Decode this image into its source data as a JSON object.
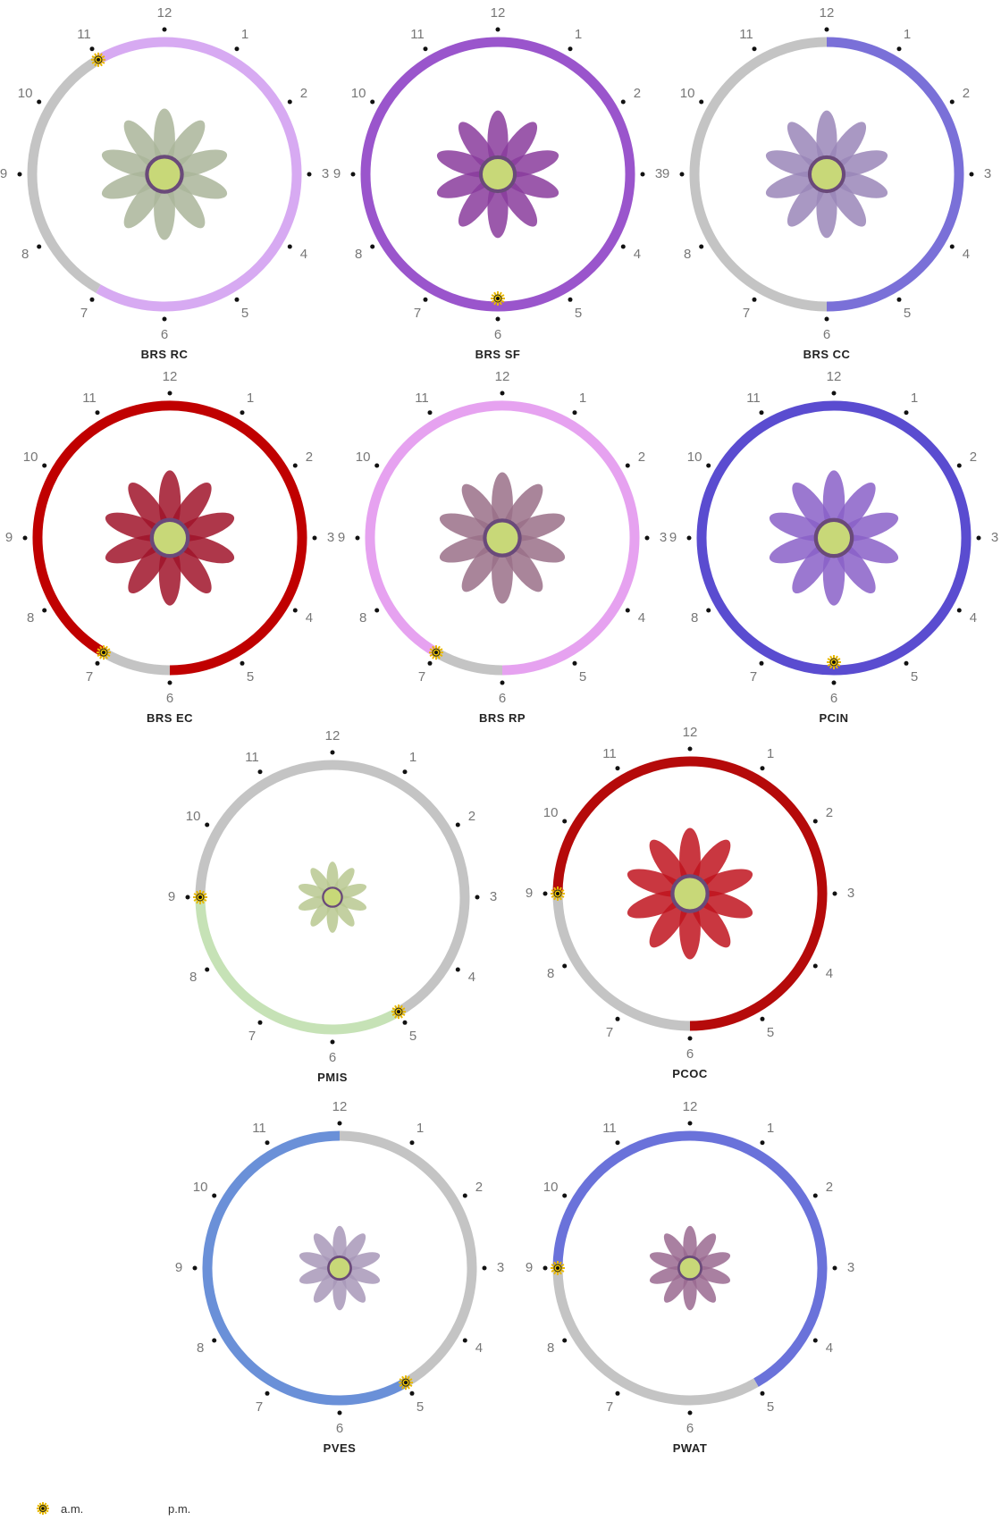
{
  "hours": [
    12,
    1,
    2,
    3,
    4,
    5,
    6,
    7,
    8,
    9,
    10,
    11
  ],
  "panels": [
    {
      "label": "BRS RC",
      "color": "#d7aaf2",
      "flower_color": "#aab59a",
      "open": {
        "hour": 11,
        "icon": "sun"
      },
      "close": {
        "hour": 7,
        "icon": "moon"
      }
    },
    {
      "label": "BRS SF",
      "color": "#9a55cc",
      "flower_color": "#8a3c9c",
      "open": {
        "hour": 6,
        "icon": "sun"
      },
      "close": {
        "hour": 6,
        "icon": "moon"
      }
    },
    {
      "label": "BRS CC",
      "color": "#7a70d8",
      "flower_color": "#9a86b8",
      "open": {
        "hour": 12,
        "icon": "moon"
      },
      "close": {
        "hour": 6,
        "icon": "moon"
      }
    },
    {
      "label": "BRS EC",
      "color": "#c00000",
      "flower_color": "#a0142a",
      "open": {
        "hour": 7,
        "icon": "sun"
      },
      "close": {
        "hour": 6,
        "icon": "moon"
      }
    },
    {
      "label": "BRS RP",
      "color": "#e6a2f0",
      "flower_color": "#9a7088",
      "open": {
        "hour": 7,
        "icon": "sun"
      },
      "close": {
        "hour": 6,
        "icon": "moon"
      }
    },
    {
      "label": "PCIN",
      "color": "#5a4cd0",
      "flower_color": "#8a60c8",
      "open": {
        "hour": 6,
        "icon": "sun"
      },
      "close": {
        "hour": 6,
        "icon": "moon"
      }
    },
    {
      "label": "PMIS",
      "color": "#c6e2b6",
      "flower_color": "#b8c890",
      "open": {
        "hour": 5,
        "icon": "sun"
      },
      "close": {
        "hour": 9,
        "icon": "sun"
      }
    },
    {
      "label": "PCOC",
      "color": "#b50a0a",
      "flower_color": "#c0141e",
      "open": {
        "hour": 9,
        "icon": "sun"
      },
      "close": {
        "hour": 6,
        "icon": "moon"
      }
    },
    {
      "label": "PVES",
      "color": "#6a90d8",
      "flower_color": "#a898b8",
      "open": {
        "hour": 5,
        "icon": "sun"
      },
      "close": {
        "hour": 12,
        "icon": "moon"
      }
    },
    {
      "label": "PWAT",
      "color": "#6a72da",
      "flower_color": "#9a6a90",
      "open": {
        "hour": 9,
        "icon": "sun"
      },
      "close": {
        "hour": 5,
        "icon": "moon"
      }
    }
  ],
  "legend": [
    {
      "icon": "sun",
      "label": "a.m."
    },
    {
      "icon": "moon",
      "label": "p.m."
    }
  ]
}
